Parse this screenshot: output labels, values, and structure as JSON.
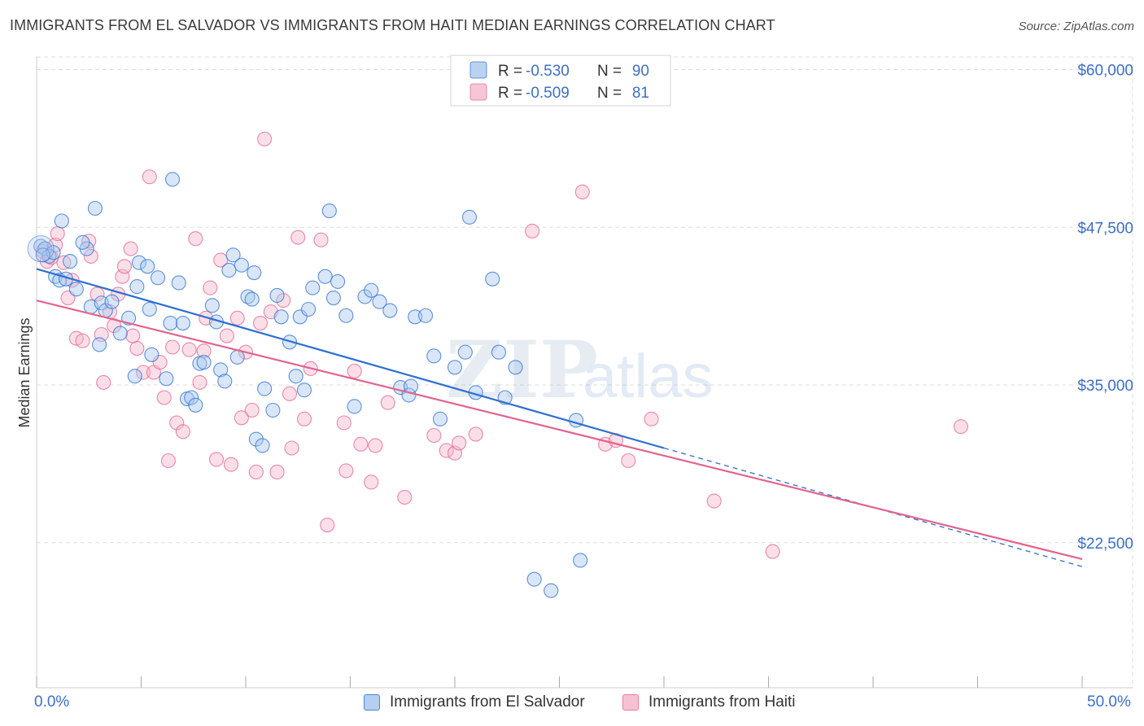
{
  "title": "IMMIGRANTS FROM EL SALVADOR VS IMMIGRANTS FROM HAITI MEDIAN EARNINGS CORRELATION CHART",
  "source": "Source: ZipAtlas.com",
  "colors": {
    "blue": "#2e6fd0",
    "blue_fill": "#a9c7ef",
    "pink": "#e2648e",
    "pink_fill": "#f5b8cc",
    "axis_text": "#3e6fc4",
    "grid": "#dddddd"
  },
  "legend": {
    "r_label": "R =",
    "n_label": "N =",
    "rows": [
      {
        "r": "-0.530",
        "n": "90",
        "color": "blue"
      },
      {
        "r": "-0.509",
        "n": "81",
        "color": "pink"
      }
    ]
  },
  "watermark": {
    "zip": "ZIP",
    "atlas": "atlas"
  },
  "chart_data": {
    "type": "scatter",
    "xlabel": "",
    "ylabel": "Median Earnings",
    "xlim": [
      0,
      50
    ],
    "ylim": [
      11000,
      61000
    ],
    "x_tick_labels": [
      "0.0%",
      "50.0%"
    ],
    "y_ticks": [
      {
        "value": 22500,
        "label": "$22,500"
      },
      {
        "value": 35000,
        "label": "$35,000"
      },
      {
        "value": 47500,
        "label": "$47,500"
      },
      {
        "value": 60000,
        "label": "$60,000"
      }
    ],
    "legend_position": "top-center",
    "grid": true,
    "series": [
      {
        "name": "Immigrants from El Salvador",
        "color": "blue",
        "trend": {
          "x0": 0,
          "y0": 44200,
          "x1": 30,
          "y1": 30000,
          "dash_to_x": 50,
          "dash_to_y": 20600
        },
        "points": [
          [
            0.2,
            46000
          ],
          [
            0.4,
            45800
          ],
          [
            0.6,
            45200
          ],
          [
            0.8,
            45500
          ],
          [
            0.9,
            43600
          ],
          [
            1.1,
            43300
          ],
          [
            1.2,
            48000
          ],
          [
            1.6,
            44800
          ],
          [
            1.9,
            42600
          ],
          [
            2.4,
            45800
          ],
          [
            2.8,
            49000
          ],
          [
            2.2,
            46300
          ],
          [
            2.6,
            41200
          ],
          [
            3.1,
            41500
          ],
          [
            3.3,
            40900
          ],
          [
            3.6,
            41600
          ],
          [
            3.0,
            38200
          ],
          [
            4.0,
            39100
          ],
          [
            4.4,
            40300
          ],
          [
            4.8,
            42800
          ],
          [
            4.9,
            44700
          ],
          [
            5.3,
            44400
          ],
          [
            5.4,
            41000
          ],
          [
            5.8,
            43500
          ],
          [
            4.7,
            35700
          ],
          [
            5.5,
            37400
          ],
          [
            6.2,
            35500
          ],
          [
            6.4,
            39900
          ],
          [
            6.8,
            43100
          ],
          [
            6.5,
            51300
          ],
          [
            7.0,
            39900
          ],
          [
            7.2,
            33900
          ],
          [
            7.4,
            34000
          ],
          [
            7.6,
            33400
          ],
          [
            7.8,
            36700
          ],
          [
            8.0,
            36800
          ],
          [
            8.4,
            41300
          ],
          [
            8.6,
            40000
          ],
          [
            8.8,
            36200
          ],
          [
            9.0,
            35300
          ],
          [
            9.2,
            44100
          ],
          [
            9.6,
            37200
          ],
          [
            9.4,
            45300
          ],
          [
            9.8,
            44500
          ],
          [
            10.1,
            42000
          ],
          [
            10.4,
            43900
          ],
          [
            10.5,
            30700
          ],
          [
            10.8,
            30200
          ],
          [
            10.9,
            34700
          ],
          [
            10.3,
            41800
          ],
          [
            11.3,
            33000
          ],
          [
            11.5,
            42100
          ],
          [
            11.7,
            40400
          ],
          [
            12.1,
            38400
          ],
          [
            12.4,
            35700
          ],
          [
            12.6,
            40400
          ],
          [
            12.8,
            34600
          ],
          [
            13.0,
            41000
          ],
          [
            13.2,
            42700
          ],
          [
            13.8,
            43600
          ],
          [
            14.0,
            48800
          ],
          [
            14.2,
            41900
          ],
          [
            14.4,
            43200
          ],
          [
            14.8,
            40500
          ],
          [
            15.2,
            33300
          ],
          [
            15.7,
            42000
          ],
          [
            16.0,
            42500
          ],
          [
            16.4,
            41600
          ],
          [
            16.9,
            40900
          ],
          [
            17.4,
            34800
          ],
          [
            17.8,
            34200
          ],
          [
            17.9,
            34900
          ],
          [
            18.1,
            40400
          ],
          [
            18.6,
            40500
          ],
          [
            19.0,
            37300
          ],
          [
            19.3,
            32300
          ],
          [
            20.0,
            36400
          ],
          [
            20.5,
            37600
          ],
          [
            20.7,
            48300
          ],
          [
            21.0,
            34400
          ],
          [
            21.8,
            43400
          ],
          [
            22.1,
            37600
          ],
          [
            22.4,
            34000
          ],
          [
            22.9,
            36400
          ],
          [
            23.8,
            19600
          ],
          [
            24.6,
            18700
          ],
          [
            25.8,
            32200
          ],
          [
            26.0,
            21100
          ],
          [
            0.3,
            45300
          ],
          [
            1.4,
            43400
          ]
        ]
      },
      {
        "name": "Immigrants from Haiti",
        "color": "pink",
        "trend": {
          "x0": 0,
          "y0": 41700,
          "x1": 50,
          "y1": 21200
        },
        "points": [
          [
            0.3,
            45600
          ],
          [
            0.5,
            44800
          ],
          [
            0.7,
            45100
          ],
          [
            0.9,
            46100
          ],
          [
            1.0,
            47000
          ],
          [
            1.3,
            44700
          ],
          [
            1.5,
            41900
          ],
          [
            1.7,
            43300
          ],
          [
            1.9,
            38700
          ],
          [
            2.2,
            38500
          ],
          [
            2.5,
            46400
          ],
          [
            2.6,
            45200
          ],
          [
            2.9,
            42200
          ],
          [
            3.1,
            39000
          ],
          [
            3.2,
            35200
          ],
          [
            3.5,
            40800
          ],
          [
            3.7,
            39700
          ],
          [
            3.9,
            42200
          ],
          [
            4.1,
            43600
          ],
          [
            4.2,
            44400
          ],
          [
            4.5,
            45800
          ],
          [
            4.8,
            37900
          ],
          [
            5.1,
            36000
          ],
          [
            5.4,
            51500
          ],
          [
            5.6,
            36000
          ],
          [
            5.9,
            36800
          ],
          [
            6.1,
            34000
          ],
          [
            6.3,
            29000
          ],
          [
            6.5,
            38000
          ],
          [
            6.7,
            32000
          ],
          [
            7.0,
            31300
          ],
          [
            7.3,
            37800
          ],
          [
            7.6,
            46600
          ],
          [
            7.8,
            35200
          ],
          [
            8.0,
            37700
          ],
          [
            8.1,
            40300
          ],
          [
            8.3,
            42700
          ],
          [
            8.6,
            29100
          ],
          [
            8.8,
            44900
          ],
          [
            9.1,
            38900
          ],
          [
            9.3,
            28700
          ],
          [
            9.6,
            40300
          ],
          [
            9.8,
            32400
          ],
          [
            10.0,
            37600
          ],
          [
            10.3,
            33000
          ],
          [
            10.5,
            28100
          ],
          [
            10.7,
            39900
          ],
          [
            10.9,
            54500
          ],
          [
            11.2,
            40800
          ],
          [
            11.5,
            28100
          ],
          [
            11.8,
            41700
          ],
          [
            12.1,
            34300
          ],
          [
            12.2,
            30000
          ],
          [
            12.5,
            46700
          ],
          [
            12.8,
            32300
          ],
          [
            13.1,
            36300
          ],
          [
            13.6,
            46500
          ],
          [
            13.9,
            23900
          ],
          [
            14.7,
            32000
          ],
          [
            14.8,
            28200
          ],
          [
            15.2,
            36100
          ],
          [
            15.5,
            30300
          ],
          [
            16.0,
            27300
          ],
          [
            16.2,
            30200
          ],
          [
            16.8,
            33600
          ],
          [
            17.6,
            26100
          ],
          [
            19.0,
            31000
          ],
          [
            19.6,
            29800
          ],
          [
            20.0,
            29600
          ],
          [
            20.2,
            30400
          ],
          [
            21.0,
            31100
          ],
          [
            23.7,
            47200
          ],
          [
            26.1,
            50300
          ],
          [
            27.2,
            30300
          ],
          [
            27.7,
            30600
          ],
          [
            28.3,
            29000
          ],
          [
            29.4,
            32300
          ],
          [
            32.4,
            25800
          ],
          [
            35.2,
            21800
          ],
          [
            44.2,
            31700
          ],
          [
            4.6,
            38900
          ]
        ]
      }
    ]
  },
  "bottom_legend": [
    {
      "label": "Immigrants from El Salvador",
      "color": "blue"
    },
    {
      "label": "Immigrants from Haiti",
      "color": "pink"
    }
  ]
}
